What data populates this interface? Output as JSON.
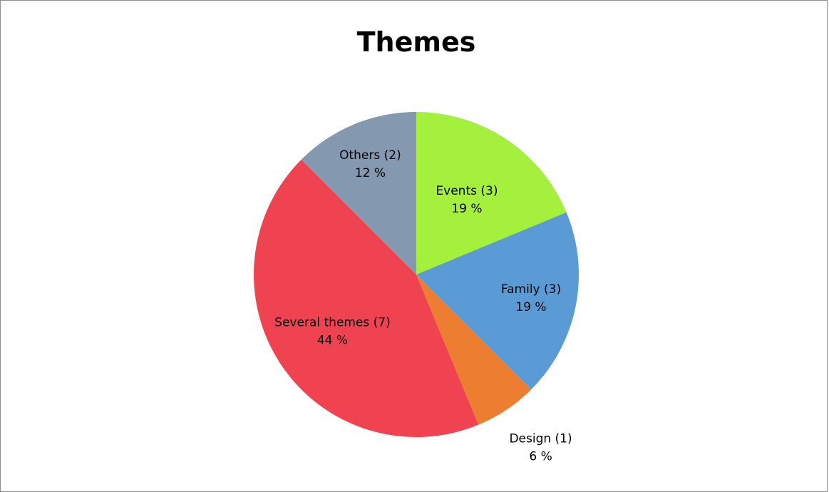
{
  "chart_data": {
    "type": "pie",
    "title": "Themes",
    "slices": [
      {
        "label": "Events (3)",
        "percent_label": "19 %",
        "value": 3,
        "color": "#a4f03c"
      },
      {
        "label": "Family (3)",
        "percent_label": "19 %",
        "value": 3,
        "color": "#5b9bd5"
      },
      {
        "label": "Design (1)",
        "percent_label": "6 %",
        "value": 1,
        "color": "#ed7d31"
      },
      {
        "label": "Several themes (7)",
        "percent_label": "44 %",
        "value": 7,
        "color": "#f04352"
      },
      {
        "label": "Others (2)",
        "percent_label": "12 %",
        "value": 2,
        "color": "#8498b0"
      }
    ],
    "start_angle_deg": 0,
    "direction": "clockwise",
    "legend": "none"
  }
}
